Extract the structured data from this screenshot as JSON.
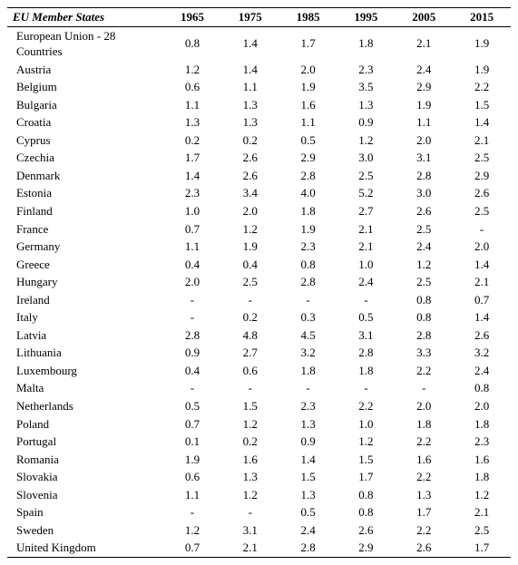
{
  "table": {
    "columns": [
      "EU Member States",
      "1965",
      "1975",
      "1985",
      "1995",
      "2005",
      "2015"
    ],
    "rows": [
      [
        "European Union - 28 Countries",
        "0.8",
        "1.4",
        "1.7",
        "1.8",
        "2.1",
        "1.9"
      ],
      [
        "Austria",
        "1.2",
        "1.4",
        "2.0",
        "2.3",
        "2.4",
        "1.9"
      ],
      [
        "Belgium",
        "0.6",
        "1.1",
        "1.9",
        "3.5",
        "2.9",
        "2.2"
      ],
      [
        "Bulgaria",
        "1.1",
        "1.3",
        "1.6",
        "1.3",
        "1.9",
        "1.5"
      ],
      [
        "Croatia",
        "1.3",
        "1.3",
        "1.1",
        "0.9",
        "1.1",
        "1.4"
      ],
      [
        "Cyprus",
        "0.2",
        "0.2",
        "0.5",
        "1.2",
        "2.0",
        "2.1"
      ],
      [
        "Czechia",
        "1.7",
        "2.6",
        "2.9",
        "3.0",
        "3.1",
        "2.5"
      ],
      [
        "Denmark",
        "1.4",
        "2.6",
        "2.8",
        "2.5",
        "2.8",
        "2.9"
      ],
      [
        "Estonia",
        "2.3",
        "3.4",
        "4.0",
        "5.2",
        "3.0",
        "2.6"
      ],
      [
        "Finland",
        "1.0",
        "2.0",
        "1.8",
        "2.7",
        "2.6",
        "2.5"
      ],
      [
        "France",
        "0.7",
        "1.2",
        "1.9",
        "2.1",
        "2.5",
        "-"
      ],
      [
        "Germany",
        "1.1",
        "1.9",
        "2.3",
        "2.1",
        "2.4",
        "2.0"
      ],
      [
        "Greece",
        "0.4",
        "0.4",
        "0.8",
        "1.0",
        "1.2",
        "1.4"
      ],
      [
        "Hungary",
        "2.0",
        "2.5",
        "2.8",
        "2.4",
        "2.5",
        "2.1"
      ],
      [
        "Ireland",
        "-",
        "-",
        "-",
        "-",
        "0.8",
        "0.7"
      ],
      [
        "Italy",
        "-",
        "0.2",
        "0.3",
        "0.5",
        "0.8",
        "1.4"
      ],
      [
        "Latvia",
        "2.8",
        "4.8",
        "4.5",
        "3.1",
        "2.8",
        "2.6"
      ],
      [
        "Lithuania",
        "0.9",
        "2.7",
        "3.2",
        "2.8",
        "3.3",
        "3.2"
      ],
      [
        "Luxembourg",
        "0.4",
        "0.6",
        "1.8",
        "1.8",
        "2.2",
        "2.4"
      ],
      [
        "Malta",
        "-",
        "-",
        "-",
        "-",
        "-",
        "0.8"
      ],
      [
        "Netherlands",
        "0.5",
        "1.5",
        "2.3",
        "2.2",
        "2.0",
        "2.0"
      ],
      [
        "Poland",
        "0.7",
        "1.2",
        "1.3",
        "1.0",
        "1.8",
        "1.8"
      ],
      [
        "Portugal",
        "0.1",
        "0.2",
        "0.9",
        "1.2",
        "2.2",
        "2.3"
      ],
      [
        "Romania",
        "1.9",
        "1.6",
        "1.4",
        "1.5",
        "1.6",
        "1.6"
      ],
      [
        "Slovakia",
        "0.6",
        "1.3",
        "1.5",
        "1.7",
        "2.2",
        "1.8"
      ],
      [
        "Slovenia",
        "1.1",
        "1.2",
        "1.3",
        "0.8",
        "1.3",
        "1.2"
      ],
      [
        "Spain",
        "-",
        "-",
        "0.5",
        "0.8",
        "1.7",
        "2.1"
      ],
      [
        "Sweden",
        "1.2",
        "3.1",
        "2.4",
        "2.6",
        "2.2",
        "2.5"
      ],
      [
        "United Kingdom",
        "0.7",
        "2.1",
        "2.8",
        "2.9",
        "2.6",
        "1.7"
      ]
    ]
  }
}
